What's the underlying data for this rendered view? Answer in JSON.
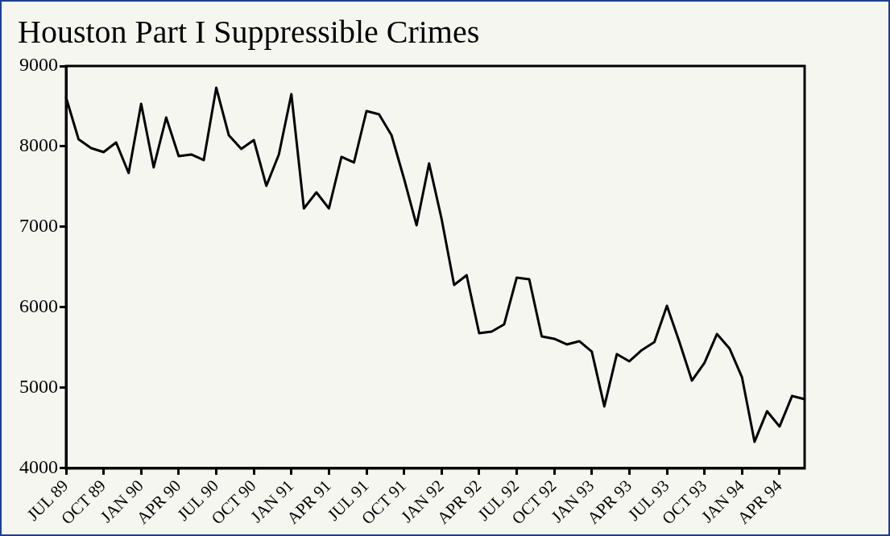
{
  "chart_data": {
    "type": "line",
    "title": "Houston Part I Suppressible Crimes",
    "categories": [
      "JUL 89",
      null,
      null,
      "OCT 89",
      null,
      null,
      "JAN 90",
      null,
      null,
      "APR 90",
      null,
      null,
      "JUL 90",
      null,
      null,
      "OCT 90",
      null,
      null,
      "JAN 91",
      null,
      null,
      "APR 91",
      null,
      null,
      "JUL 91",
      null,
      null,
      "OCT 91",
      null,
      null,
      "JAN 92",
      null,
      null,
      "APR 92",
      null,
      null,
      "JUL 92",
      null,
      null,
      "OCT 92",
      null,
      null,
      "JAN 93",
      null,
      null,
      "APR 93",
      null,
      null,
      "JUL 93",
      null,
      null,
      "OCT 93",
      null,
      null,
      "JAN 94",
      null,
      null,
      "APR 94",
      null,
      null
    ],
    "series": [
      {
        "color": "#000000",
        "values": [
          8610,
          8090,
          7980,
          7930,
          8050,
          7670,
          8530,
          7740,
          8360,
          7880,
          7900,
          7830,
          8730,
          8140,
          7970,
          8080,
          7510,
          7900,
          8650,
          7230,
          7430,
          7230,
          7870,
          7800,
          8440,
          8400,
          8140,
          7600,
          7020,
          7790,
          7100,
          6280,
          6400,
          5680,
          5700,
          5790,
          6370,
          6350,
          5640,
          5610,
          5540,
          5580,
          5450,
          4770,
          5420,
          5330,
          5470,
          5570,
          6020,
          5570,
          5090,
          5310,
          5670,
          5490,
          5130,
          4330,
          4710,
          4520,
          4900,
          4860
        ]
      }
    ],
    "ylim": [
      4000,
      9000
    ],
    "yticks": [
      4000,
      5000,
      6000,
      7000,
      8000,
      9000
    ],
    "grid": false,
    "legend": false,
    "marker": "none",
    "line_style": "solid"
  }
}
